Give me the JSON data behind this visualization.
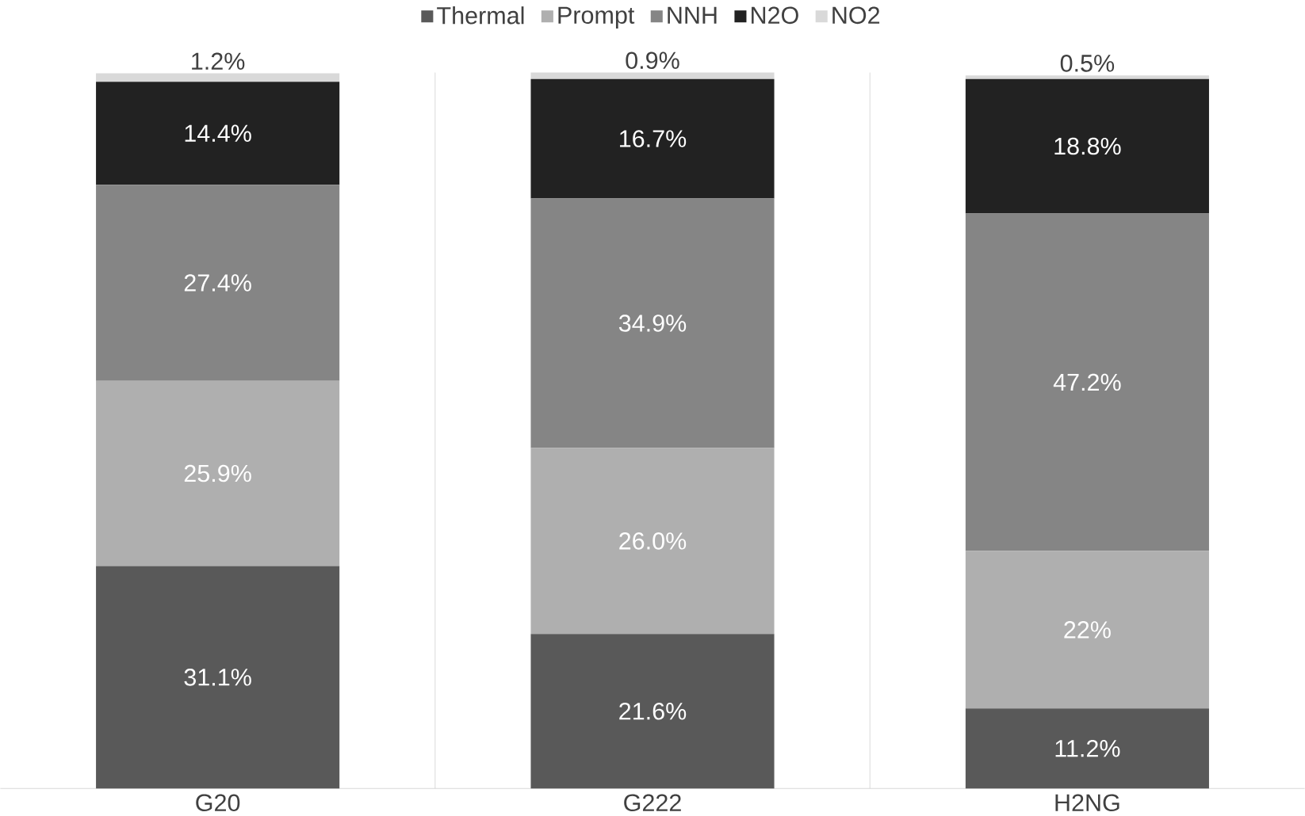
{
  "chart_data": {
    "type": "bar",
    "stacked": true,
    "categories": [
      "G20",
      "G222",
      "H2NG"
    ],
    "series": [
      {
        "name": "Thermal",
        "color": "#595959",
        "values": [
          31.1,
          21.6,
          11.2
        ],
        "value_labels": [
          "31.1%",
          "21.6%",
          "11.2%"
        ]
      },
      {
        "name": "Prompt",
        "color": "#afafaf",
        "values": [
          25.9,
          26.0,
          22
        ],
        "value_labels": [
          "25.9%",
          "26.0%",
          "22%"
        ]
      },
      {
        "name": "NNH",
        "color": "#858585",
        "values": [
          27.4,
          34.9,
          47.2
        ],
        "value_labels": [
          "27.4%",
          "34.9%",
          "47.2%"
        ]
      },
      {
        "name": "N2O",
        "color": "#222222",
        "values": [
          14.4,
          16.7,
          18.8
        ],
        "value_labels": [
          "14.4%",
          "16.7%",
          "18.8%"
        ]
      },
      {
        "name": "NO2",
        "color": "#d9d9d9",
        "values": [
          1.2,
          0.9,
          0.5
        ],
        "value_labels": [
          "1.2%",
          "0.9%",
          "0.5%"
        ]
      }
    ],
    "legend": "top",
    "grid": "x"
  }
}
